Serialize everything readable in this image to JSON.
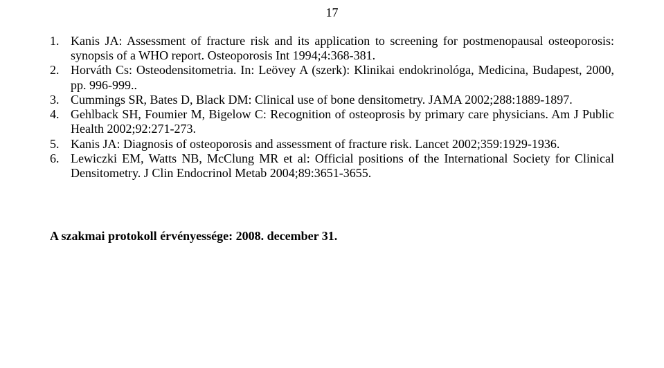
{
  "page_number": "17",
  "references": [
    {
      "num": "1.",
      "text": "Kanis JA: Assessment of fracture risk and its application to screening for postmenopausal osteoporosis: synopsis of a WHO report.  Osteoporosis Int 1994;4:368-381."
    },
    {
      "num": "2.",
      "text": "Horváth Cs: Osteodensitometria. In: Leövey A (szerk): Klinikai endokrinológa, Medicina, Budapest, 2000, pp. 996-999.."
    },
    {
      "num": "3.",
      "text": "Cummings SR, Bates D, Black DM: Clinical use of bone densitometry. JAMA 2002;288:1889-1897."
    },
    {
      "num": "4.",
      "text": "Gehlback SH, Foumier M, Bigelow C: Recognition of osteoprosis by primary care physicians. Am J Public Health 2002;92:271-273."
    },
    {
      "num": "5.",
      "text": "Kanis JA: Diagnosis of osteoporosis and assessment of fracture risk.  Lancet 2002;359:1929-1936."
    },
    {
      "num": "6.",
      "text": "Lewiczki EM, Watts NB, McClung MR et al: Official positions of the International Society for Clinical Densitometry.  J Clin Endocrinol Metab 2004;89:3651-3655."
    }
  ],
  "footer": "A szakmai protokoll érvényessége: 2008. december 31.",
  "colors": {
    "background": "#ffffff",
    "text": "#000000"
  },
  "typography": {
    "font_family": "Times New Roman",
    "body_fontsize_pt": 14,
    "page_number_fontsize_pt": 14,
    "footer_fontsize_pt": 14,
    "footer_weight": "bold"
  }
}
